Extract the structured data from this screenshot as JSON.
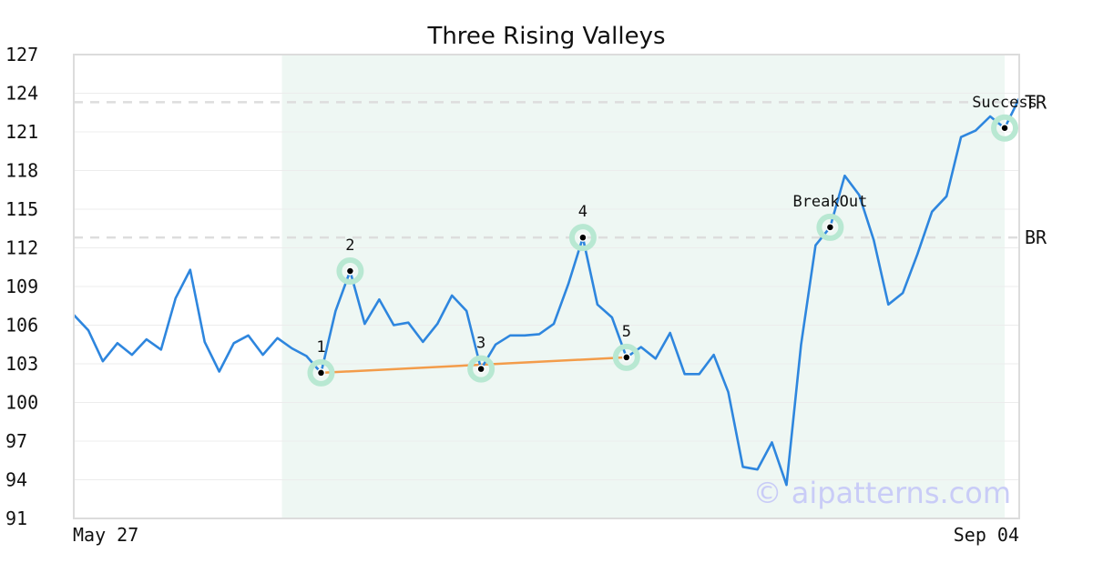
{
  "chart_data": {
    "type": "line",
    "title": "Three Rising Valleys",
    "x_start_label": "May 27",
    "x_end_label": "Sep 04",
    "ylim": [
      91,
      127
    ],
    "yticks": [
      91,
      94,
      97,
      100,
      103,
      106,
      109,
      112,
      115,
      118,
      121,
      124,
      127
    ],
    "grid": true,
    "series": [
      {
        "color": "#2e86de",
        "values": [
          106.8,
          105.6,
          103.2,
          104.6,
          103.7,
          104.9,
          104.1,
          108.1,
          110.3,
          104.7,
          102.4,
          104.6,
          105.2,
          103.7,
          105.0,
          104.2,
          103.6,
          102.3,
          107.1,
          110.2,
          106.1,
          108.0,
          106.0,
          106.2,
          104.7,
          106.1,
          108.3,
          107.1,
          102.6,
          104.5,
          105.2,
          105.2,
          105.3,
          106.1,
          109.2,
          112.8,
          107.6,
          106.6,
          103.5,
          104.3,
          103.4,
          105.4,
          102.2,
          102.2,
          103.7,
          100.8,
          95.0,
          94.8,
          96.9,
          93.6,
          104.5,
          112.2,
          113.6,
          117.6,
          116.1,
          112.6,
          107.6,
          108.5,
          111.5,
          114.8,
          116.0,
          120.6,
          121.1,
          122.2,
          121.3,
          123.6
        ]
      }
    ],
    "highlight_range": {
      "from_index": 15,
      "to_index": 64,
      "color": "#eef7f3"
    },
    "levels": [
      {
        "label": "TR",
        "value": 123.3
      },
      {
        "label": "BR",
        "value": 112.8
      }
    ],
    "points": [
      {
        "label": "1",
        "index": 17,
        "value": 102.3
      },
      {
        "label": "2",
        "index": 19,
        "value": 110.2
      },
      {
        "label": "3",
        "index": 28,
        "value": 102.6
      },
      {
        "label": "4",
        "index": 35,
        "value": 112.8
      },
      {
        "label": "5",
        "index": 38,
        "value": 103.5
      },
      {
        "label": "BreakOut",
        "index": 52,
        "value": 113.6
      },
      {
        "label": "Success",
        "index": 64,
        "value": 121.3
      }
    ],
    "trendline": {
      "from_index": 17,
      "from_value": 102.3,
      "to_index": 38,
      "to_value": 103.5,
      "color": "#f39c4a"
    },
    "colors": {
      "line": "#2e86de",
      "marker_halo": "#b8e8d2",
      "level_line": "#dddddd"
    }
  },
  "watermark": "© aipatterns.com"
}
